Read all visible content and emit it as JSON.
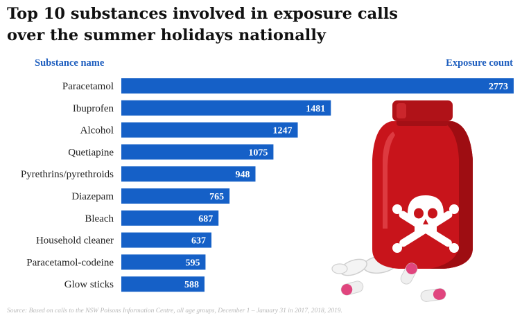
{
  "title": "Top 10 substances involved in exposure calls over the summer holidays nationally",
  "source": "Source: Based on calls to the NSW Poisons Information Centre, all age groups, December 1 – January 31 in 2017, 2018, 2019.",
  "colors": {
    "bar": "#1560c7",
    "header": "#1f5fbf",
    "bottle": "#c8141b",
    "cap": "#a10e14",
    "label": "#ffffff"
  },
  "illustration": {
    "name": "poison-bottle",
    "icon": "skull-crossbones-icon"
  },
  "chart_data": {
    "type": "bar",
    "orientation": "horizontal",
    "category_header": "Substance name",
    "value_header": "Exposure count",
    "categories": [
      "Paracetamol",
      "Ibuprofen",
      "Alcohol",
      "Quetiapine",
      "Pyrethrins/pyrethroids",
      "Diazepam",
      "Bleach",
      "Household cleaner",
      "Paracetamol-codeine",
      "Glow sticks"
    ],
    "values": [
      2773,
      1481,
      1247,
      1075,
      948,
      765,
      687,
      637,
      595,
      588
    ],
    "xlim": [
      0,
      2773
    ],
    "grid": false,
    "legend": "none"
  }
}
